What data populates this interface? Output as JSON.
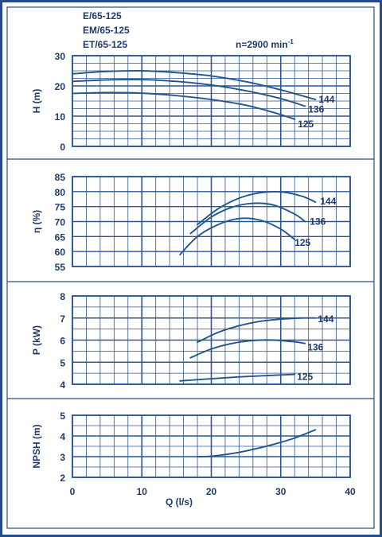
{
  "header": {
    "models": [
      "E/65-125",
      "EM/65-125",
      "ET/65-125"
    ],
    "speed_label": "n=2900 min",
    "speed_exponent": "-1"
  },
  "colors": {
    "frame": "#244c8a",
    "grid": "#2c5596",
    "curve": "#23568f",
    "text": "#1f3a6b"
  },
  "x_axis": {
    "label": "Q (l/s)",
    "range": [
      0,
      40
    ],
    "ticks": [
      0,
      10,
      20,
      30,
      40
    ]
  },
  "chart_data": [
    {
      "type": "line",
      "ylabel": "H (m)",
      "ylim": [
        0,
        30
      ],
      "yticks": [
        0,
        10,
        20,
        30
      ],
      "grid": true,
      "series": [
        {
          "name": "144",
          "x": [
            0,
            5,
            10,
            15,
            20,
            25,
            30,
            35
          ],
          "y": [
            24,
            24.8,
            25,
            24.4,
            23.3,
            21.4,
            18.7,
            15.5
          ]
        },
        {
          "name": "136",
          "x": [
            0,
            5,
            10,
            15,
            20,
            25,
            30,
            33.5
          ],
          "y": [
            21.5,
            22,
            22.1,
            21.5,
            20.3,
            18.4,
            15.8,
            13.3
          ]
        },
        {
          "name": "125",
          "x": [
            0,
            5,
            10,
            15,
            20,
            25,
            29,
            32
          ],
          "y": [
            17.5,
            17.8,
            17.6,
            16.8,
            15.5,
            13.6,
            11.2,
            9
          ]
        }
      ]
    },
    {
      "type": "line",
      "ylabel": "η (%)",
      "ylim": [
        55,
        85
      ],
      "yticks": [
        55,
        60,
        65,
        70,
        75,
        80,
        85
      ],
      "grid": true,
      "series": [
        {
          "name": "144",
          "x": [
            18,
            21,
            24,
            27,
            30,
            33,
            35
          ],
          "y": [
            69,
            74.3,
            77.8,
            79.6,
            79.9,
            78.5,
            76.5
          ]
        },
        {
          "name": "136",
          "x": [
            17,
            20,
            23,
            26,
            29,
            32,
            33.5
          ],
          "y": [
            66,
            71.5,
            74.8,
            76.1,
            75.5,
            72.5,
            70
          ]
        },
        {
          "name": "125",
          "x": [
            15.5,
            18,
            21,
            24,
            27,
            30,
            32
          ],
          "y": [
            59,
            65,
            69,
            71,
            70.5,
            67.5,
            64
          ]
        }
      ]
    },
    {
      "type": "line",
      "ylabel": "P (kW)",
      "ylim": [
        4,
        8
      ],
      "yticks": [
        4,
        5,
        6,
        7,
        8
      ],
      "grid": true,
      "series": [
        {
          "name": "144",
          "x": [
            18,
            21,
            24,
            27,
            30,
            33,
            35
          ],
          "y": [
            5.9,
            6.35,
            6.65,
            6.85,
            6.95,
            7.0,
            7.0
          ]
        },
        {
          "name": "136",
          "x": [
            17,
            20,
            23,
            26,
            29,
            32,
            33.5
          ],
          "y": [
            5.2,
            5.6,
            5.85,
            5.98,
            6.0,
            5.92,
            5.85
          ]
        },
        {
          "name": "125",
          "x": [
            15.5,
            20,
            25,
            32
          ],
          "y": [
            4.15,
            4.25,
            4.35,
            4.45
          ]
        }
      ]
    },
    {
      "type": "line",
      "ylabel": "NPSH (m)",
      "ylim": [
        2,
        5
      ],
      "yticks": [
        2,
        3,
        4,
        5
      ],
      "grid": true,
      "series": [
        {
          "name": "NPSH",
          "x": [
            18,
            20,
            23,
            26,
            29,
            32,
            35
          ],
          "y": [
            3.0,
            3.02,
            3.15,
            3.35,
            3.6,
            3.9,
            4.3
          ]
        }
      ]
    }
  ]
}
